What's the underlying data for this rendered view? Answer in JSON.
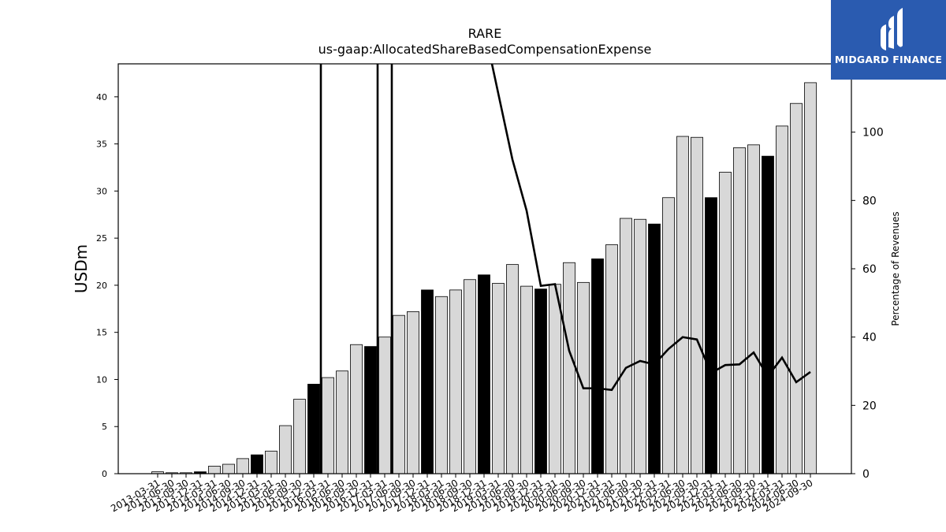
{
  "chart_data": {
    "type": "bar",
    "title": "RARE",
    "subtitle": "us-gaap:AllocatedShareBasedCompensationExpense",
    "ylabel": "USDm",
    "y2label": "Percentage of Revenues",
    "ylim": [
      0,
      43.5
    ],
    "y2lim": [
      0,
      120
    ],
    "yticks": [
      0,
      5,
      10,
      15,
      20,
      25,
      30,
      35,
      40
    ],
    "y2ticks": [
      0,
      20,
      40,
      60,
      80,
      100
    ],
    "categories": [
      "2013-03-31",
      "2013-06-30",
      "2013-09-30",
      "2013-12-31",
      "2014-03-31",
      "2014-06-30",
      "2014-09-30",
      "2014-12-31",
      "2015-03-31",
      "2015-06-30",
      "2015-09-30",
      "2015-12-31",
      "2016-03-31",
      "2016-06-30",
      "2016-09-30",
      "2016-12-31",
      "2017-03-31",
      "2017-06-30",
      "2017-09-30",
      "2017-12-31",
      "2018-03-31",
      "2018-06-30",
      "2018-09-30",
      "2018-12-31",
      "2019-03-31",
      "2019-06-30",
      "2019-09-30",
      "2019-12-31",
      "2020-03-31",
      "2020-06-30",
      "2020-09-30",
      "2020-12-31",
      "2021-03-31",
      "2021-06-30",
      "2021-09-30",
      "2021-12-31",
      "2022-03-31",
      "2022-06-30",
      "2022-09-30",
      "2022-12-31",
      "2023-03-31",
      "2023-06-30",
      "2023-09-30",
      "2023-12-31",
      "2024-03-31",
      "2024-06-30",
      "2024-09-30"
    ],
    "series": [
      {
        "type": "bar",
        "values": [
          0.2,
          0.1,
          0.1,
          0.2,
          0.8,
          1.0,
          1.6,
          2.0,
          2.4,
          5.1,
          7.9,
          9.5,
          10.2,
          10.9,
          13.7,
          13.5,
          14.5,
          16.8,
          17.2,
          19.5,
          18.8,
          19.5,
          20.6,
          21.1,
          20.2,
          22.2,
          19.9,
          19.6,
          20.1,
          22.4,
          20.3,
          22.8,
          24.3,
          27.1,
          27.0,
          26.5,
          29.3,
          35.8,
          35.7,
          29.3,
          32.0,
          34.6,
          34.9,
          33.7,
          36.9,
          39.3,
          41.5
        ],
        "fill": "#d8d8d8",
        "highlight_fill": "#000000",
        "highlight_every": 4,
        "highlight_offset": 3
      },
      {
        "type": "line",
        "axis": "right",
        "color": "#000000",
        "values": [
          null,
          null,
          null,
          null,
          null,
          null,
          null,
          null,
          null,
          null,
          null,
          null,
          null,
          null,
          null,
          null,
          null,
          null,
          null,
          null,
          null,
          null,
          null,
          null,
          null,
          92,
          77,
          55,
          55.5,
          36,
          25,
          25,
          24.5,
          31,
          33,
          32,
          36.5,
          40,
          39.3,
          29.5,
          31.8,
          32,
          35.5,
          28.5,
          34,
          26.8,
          29.8
        ]
      }
    ],
    "spikes": [
      {
        "category": "2015-12-31",
        "offset": 0.5
      },
      {
        "category": "2016-12-31",
        "offset": 0.5
      },
      {
        "category": "2017-03-31",
        "offset": 0.5
      }
    ],
    "grid": false
  },
  "logo": {
    "text": "MIDGARD FINANCE",
    "background": "#2a5bb0"
  }
}
